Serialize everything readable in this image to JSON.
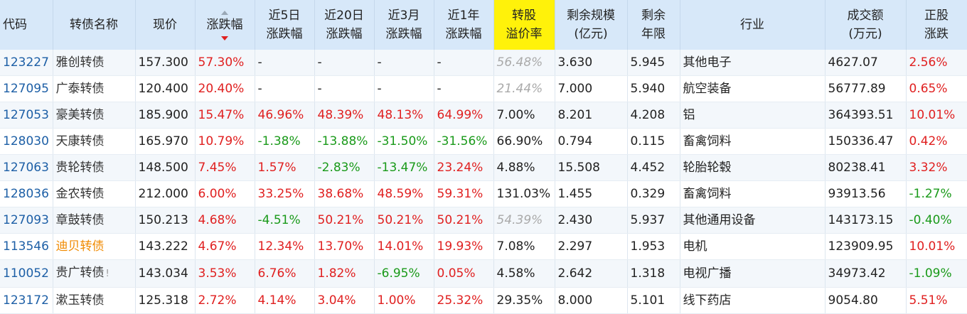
{
  "columns": {
    "code": "代码",
    "name": "转债名称",
    "price": "现价",
    "change": "涨跌幅",
    "chg_5d": [
      "近5日",
      "涨跌幅"
    ],
    "chg_20d": [
      "近20日",
      "涨跌幅"
    ],
    "chg_3m": [
      "近3月",
      "涨跌幅"
    ],
    "chg_1y": [
      "近1年",
      "涨跌幅"
    ],
    "premium": [
      "转股",
      "溢价率"
    ],
    "remaining_size": [
      "剩余规模",
      "(亿元)"
    ],
    "remaining_years": [
      "剩余",
      "年限"
    ],
    "industry": "行业",
    "turnover": [
      "成交额",
      "(万元)"
    ],
    "stock_change": [
      "正股",
      "涨跌"
    ]
  },
  "sort": {
    "column": "change",
    "direction": "desc"
  },
  "rows": [
    {
      "code": "123227",
      "name": "雅创转债",
      "price": "157.300",
      "change": "57.30%",
      "chg_5d": "-",
      "chg_20d": "-",
      "chg_3m": "-",
      "chg_1y": "-",
      "premium": "56.48%",
      "premium_muted": true,
      "remaining_size": "3.630",
      "remaining_years": "5.945",
      "industry": "其他电子",
      "turnover": "4627.07",
      "stock_change": "2.56%"
    },
    {
      "code": "127095",
      "name": "广泰转债",
      "price": "120.400",
      "change": "20.40%",
      "chg_5d": "-",
      "chg_20d": "-",
      "chg_3m": "-",
      "chg_1y": "-",
      "premium": "21.44%",
      "premium_muted": true,
      "remaining_size": "7.000",
      "remaining_years": "5.940",
      "industry": "航空装备",
      "turnover": "56777.89",
      "stock_change": "0.65%"
    },
    {
      "code": "127053",
      "name": "豪美转债",
      "price": "185.900",
      "change": "15.47%",
      "chg_5d": "46.96%",
      "chg_20d": "48.39%",
      "chg_3m": "48.13%",
      "chg_1y": "64.99%",
      "premium": "7.00%",
      "premium_muted": false,
      "remaining_size": "8.201",
      "remaining_years": "4.208",
      "industry": "铝",
      "turnover": "364393.51",
      "stock_change": "10.01%"
    },
    {
      "code": "128030",
      "name": "天康转债",
      "price": "165.970",
      "change": "10.79%",
      "chg_5d": "-1.38%",
      "chg_20d": "-13.88%",
      "chg_3m": "-31.50%",
      "chg_1y": "-31.56%",
      "premium": "66.90%",
      "premium_muted": false,
      "remaining_size": "0.794",
      "remaining_years": "0.115",
      "industry": "畜禽饲料",
      "turnover": "150336.47",
      "stock_change": "0.42%"
    },
    {
      "code": "127063",
      "name": "贵轮转债",
      "price": "148.500",
      "change": "7.45%",
      "chg_5d": "1.57%",
      "chg_20d": "-2.83%",
      "chg_3m": "-13.47%",
      "chg_1y": "23.24%",
      "premium": "4.88%",
      "premium_muted": false,
      "remaining_size": "15.508",
      "remaining_years": "4.452",
      "industry": "轮胎轮毂",
      "turnover": "80238.41",
      "stock_change": "3.32%"
    },
    {
      "code": "128036",
      "name": "金农转债",
      "price": "212.000",
      "change": "6.00%",
      "chg_5d": "33.25%",
      "chg_20d": "38.68%",
      "chg_3m": "48.59%",
      "chg_1y": "59.31%",
      "premium": "131.03%",
      "premium_muted": false,
      "remaining_size": "1.455",
      "remaining_years": "0.329",
      "industry": "畜禽饲料",
      "turnover": "93913.56",
      "stock_change": "-1.27%"
    },
    {
      "code": "127093",
      "name": "章鼓转债",
      "price": "150.213",
      "change": "4.68%",
      "chg_5d": "-4.51%",
      "chg_20d": "50.21%",
      "chg_3m": "50.21%",
      "chg_1y": "50.21%",
      "premium": "54.39%",
      "premium_muted": true,
      "remaining_size": "2.430",
      "remaining_years": "5.937",
      "industry": "其他通用设备",
      "turnover": "143173.15",
      "stock_change": "-0.40%"
    },
    {
      "code": "113546",
      "name": "迪贝转债",
      "name_highlight": true,
      "price": "143.222",
      "change": "4.67%",
      "chg_5d": "12.34%",
      "chg_20d": "13.70%",
      "chg_3m": "14.01%",
      "chg_1y": "19.93%",
      "premium": "7.08%",
      "premium_muted": false,
      "remaining_size": "2.297",
      "remaining_years": "1.953",
      "industry": "电机",
      "turnover": "123909.95",
      "stock_change": "10.01%"
    },
    {
      "code": "110052",
      "name": "贵广转债",
      "name_suffix": "!",
      "price": "143.034",
      "change": "3.53%",
      "chg_5d": "6.76%",
      "chg_20d": "1.82%",
      "chg_3m": "-6.95%",
      "chg_1y": "0.05%",
      "premium": "4.58%",
      "premium_muted": false,
      "remaining_size": "2.642",
      "remaining_years": "1.318",
      "industry": "电视广播",
      "turnover": "34973.42",
      "stock_change": "-1.09%"
    },
    {
      "code": "123172",
      "name": "漱玉转债",
      "price": "125.318",
      "change": "2.72%",
      "chg_5d": "4.14%",
      "chg_20d": "3.04%",
      "chg_3m": "1.00%",
      "chg_1y": "25.32%",
      "premium": "29.35%",
      "premium_muted": false,
      "remaining_size": "8.000",
      "remaining_years": "5.101",
      "industry": "线下药店",
      "turnover": "9054.80",
      "stock_change": "5.51%"
    }
  ],
  "colors": {
    "up": "#e02020",
    "down": "#1a9a1a",
    "code_link": "#1d5fa6",
    "highlight_header": "#fff20a",
    "header_bg": "#d7e8f9",
    "name_highlight": "#f08a00"
  }
}
